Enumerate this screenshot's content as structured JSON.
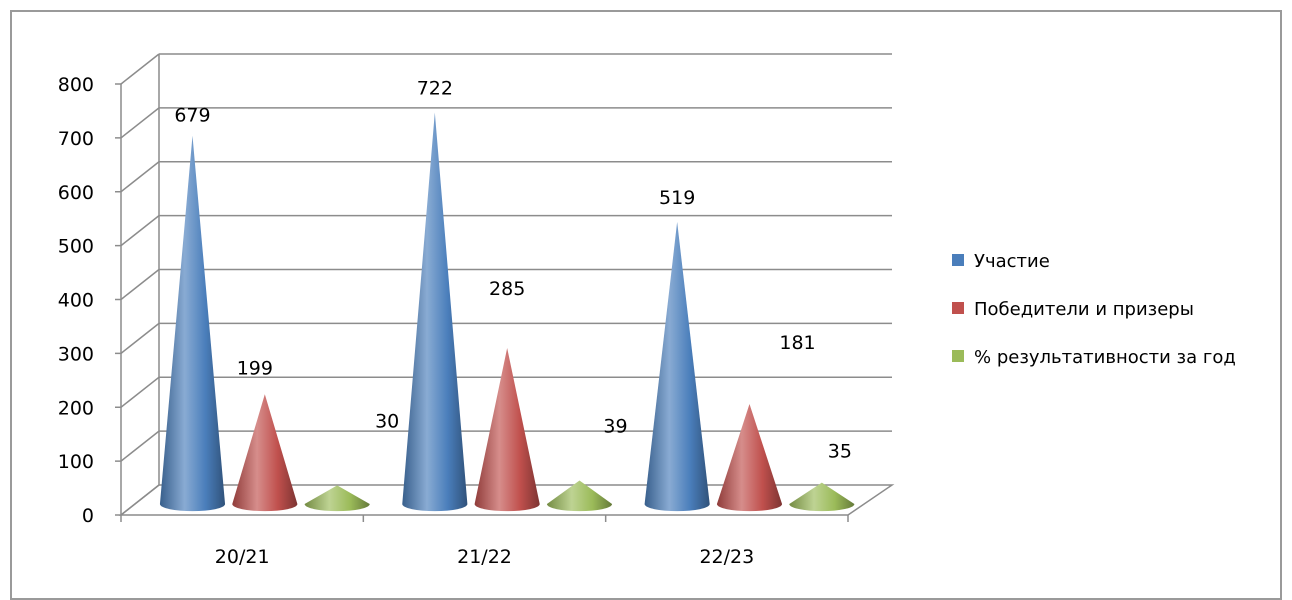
{
  "chart_data": {
    "type": "bar",
    "style": "3d-cone",
    "categories": [
      "20/21",
      "21/22",
      "22/23"
    ],
    "series": [
      {
        "name": "Участие",
        "values": [
          679,
          722,
          519
        ],
        "color": "#4a7ebb"
      },
      {
        "name": "Победители и призеры",
        "values": [
          199,
          285,
          181
        ],
        "color": "#c0504d"
      },
      {
        "name": "% результативности за год",
        "values": [
          30,
          39,
          35
        ],
        "color": "#9bbb59"
      }
    ],
    "data_labels": [
      [
        "679",
        "722",
        "519"
      ],
      [
        "199",
        "285",
        "181"
      ],
      [
        "30",
        "39",
        "35"
      ]
    ],
    "y_ticks": [
      "0",
      "100",
      "200",
      "300",
      "400",
      "500",
      "600",
      "700",
      "800"
    ],
    "ylim": [
      0,
      800
    ],
    "grid": true,
    "legend_position": "right"
  }
}
